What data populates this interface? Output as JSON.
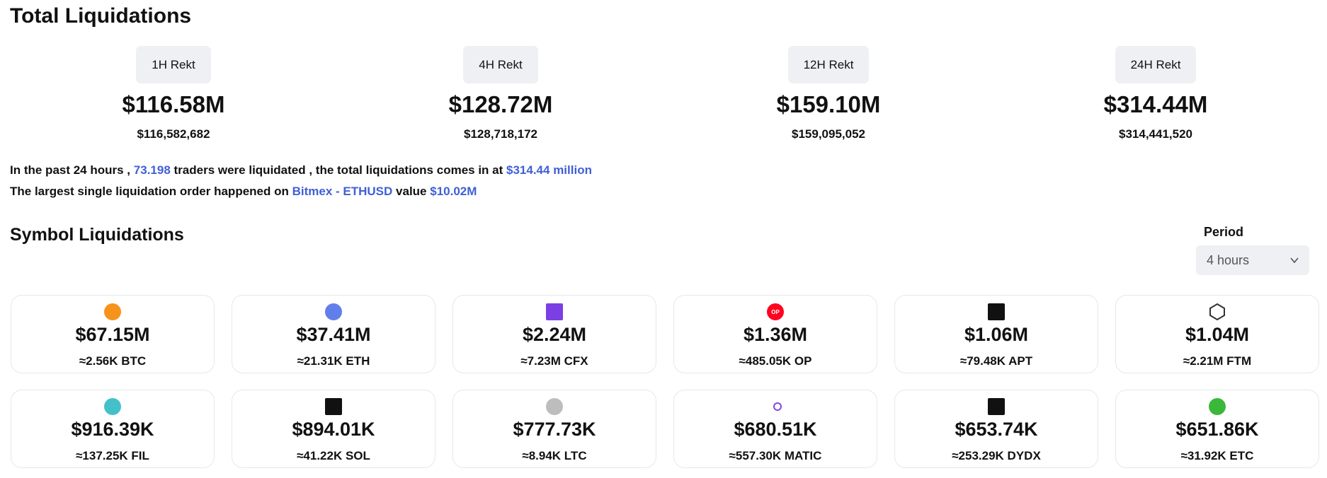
{
  "header": {
    "title": "Total Liquidations"
  },
  "rekt": [
    {
      "label": "1H Rekt",
      "value": "$116.58M",
      "exact": "$116,582,682"
    },
    {
      "label": "4H Rekt",
      "value": "$128.72M",
      "exact": "$128,718,172"
    },
    {
      "label": "12H Rekt",
      "value": "$159.10M",
      "exact": "$159,095,052"
    },
    {
      "label": "24H Rekt",
      "value": "$314.44M",
      "exact": "$314,441,520"
    }
  ],
  "summary": {
    "line1": [
      "In the past 24 hours ,",
      "73.198",
      "traders were liquidated , the total liquidations comes in at",
      "$314.44 million"
    ],
    "line2": [
      "The largest single liquidation order happened on",
      "Bitmex - ETHUSD",
      "value",
      "$10.02M"
    ]
  },
  "symbols": {
    "title": "Symbol Liquidations",
    "period_label": "Period",
    "period": "4 hours",
    "cards": [
      {
        "value": "$67.15M",
        "amount": "≈2.56K BTC"
      },
      {
        "value": "$37.41M",
        "amount": "≈21.31K ETH"
      },
      {
        "value": "$2.24M",
        "amount": "≈7.23M CFX"
      },
      {
        "value": "$1.36M",
        "amount": "≈485.05K OP",
        "icon_label": "OP"
      },
      {
        "value": "$1.06M",
        "amount": "≈79.48K APT"
      },
      {
        "value": "$1.04M",
        "amount": "≈2.21M FTM"
      },
      {
        "value": "$916.39K",
        "amount": "≈137.25K FIL"
      },
      {
        "value": "$894.01K",
        "amount": "≈41.22K SOL"
      },
      {
        "value": "$777.73K",
        "amount": "≈8.94K LTC"
      },
      {
        "value": "$680.51K",
        "amount": "≈557.30K MATIC"
      },
      {
        "value": "$653.74K",
        "amount": "≈253.29K DYDX"
      },
      {
        "value": "$651.86K",
        "amount": "≈31.92K ETC"
      }
    ]
  }
}
